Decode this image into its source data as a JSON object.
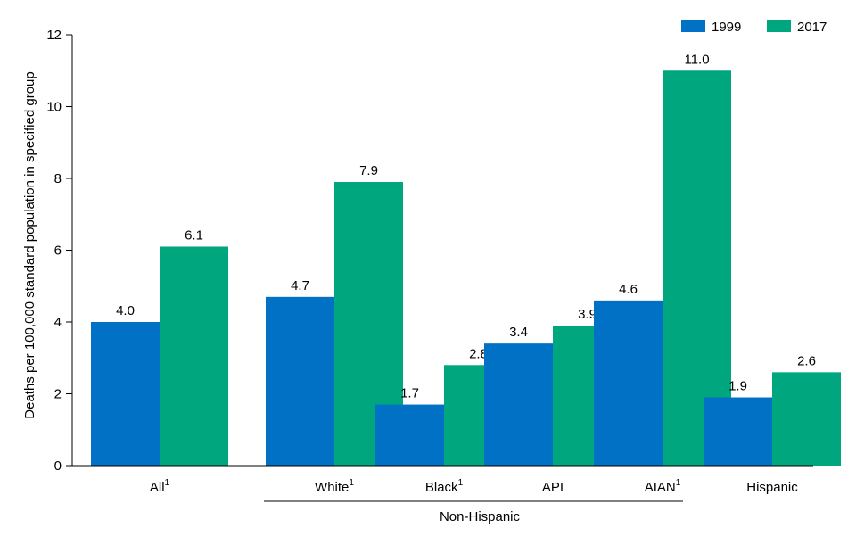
{
  "chart_data": {
    "type": "bar",
    "title": "",
    "xlabel": "",
    "ylabel": "Deaths per 100,000 standard population in specified group",
    "ylim": [
      0,
      12
    ],
    "yticks": [
      0,
      2,
      4,
      6,
      8,
      10,
      12
    ],
    "categories": [
      "All",
      "White",
      "Black",
      "API",
      "AIAN",
      "Hispanic"
    ],
    "category_superscripts": [
      "1",
      "1",
      "1",
      "",
      "1",
      ""
    ],
    "group_label": "Non-Hispanic",
    "legend_position": "top-right",
    "grid": false,
    "series": [
      {
        "name": "1999",
        "color": "#0071c5",
        "values": [
          4.0,
          4.7,
          1.7,
          3.4,
          4.6,
          1.9
        ],
        "labels": [
          "4.0",
          "4.7",
          "1.7",
          "3.4",
          "4.6",
          "1.9"
        ]
      },
      {
        "name": "2017",
        "color": "#00a67e",
        "values": [
          6.1,
          7.9,
          2.8,
          3.9,
          11.0,
          2.6
        ],
        "labels": [
          "6.1",
          "7.9",
          "2.8",
          "3.9",
          "11.0",
          "2.6"
        ]
      }
    ]
  }
}
